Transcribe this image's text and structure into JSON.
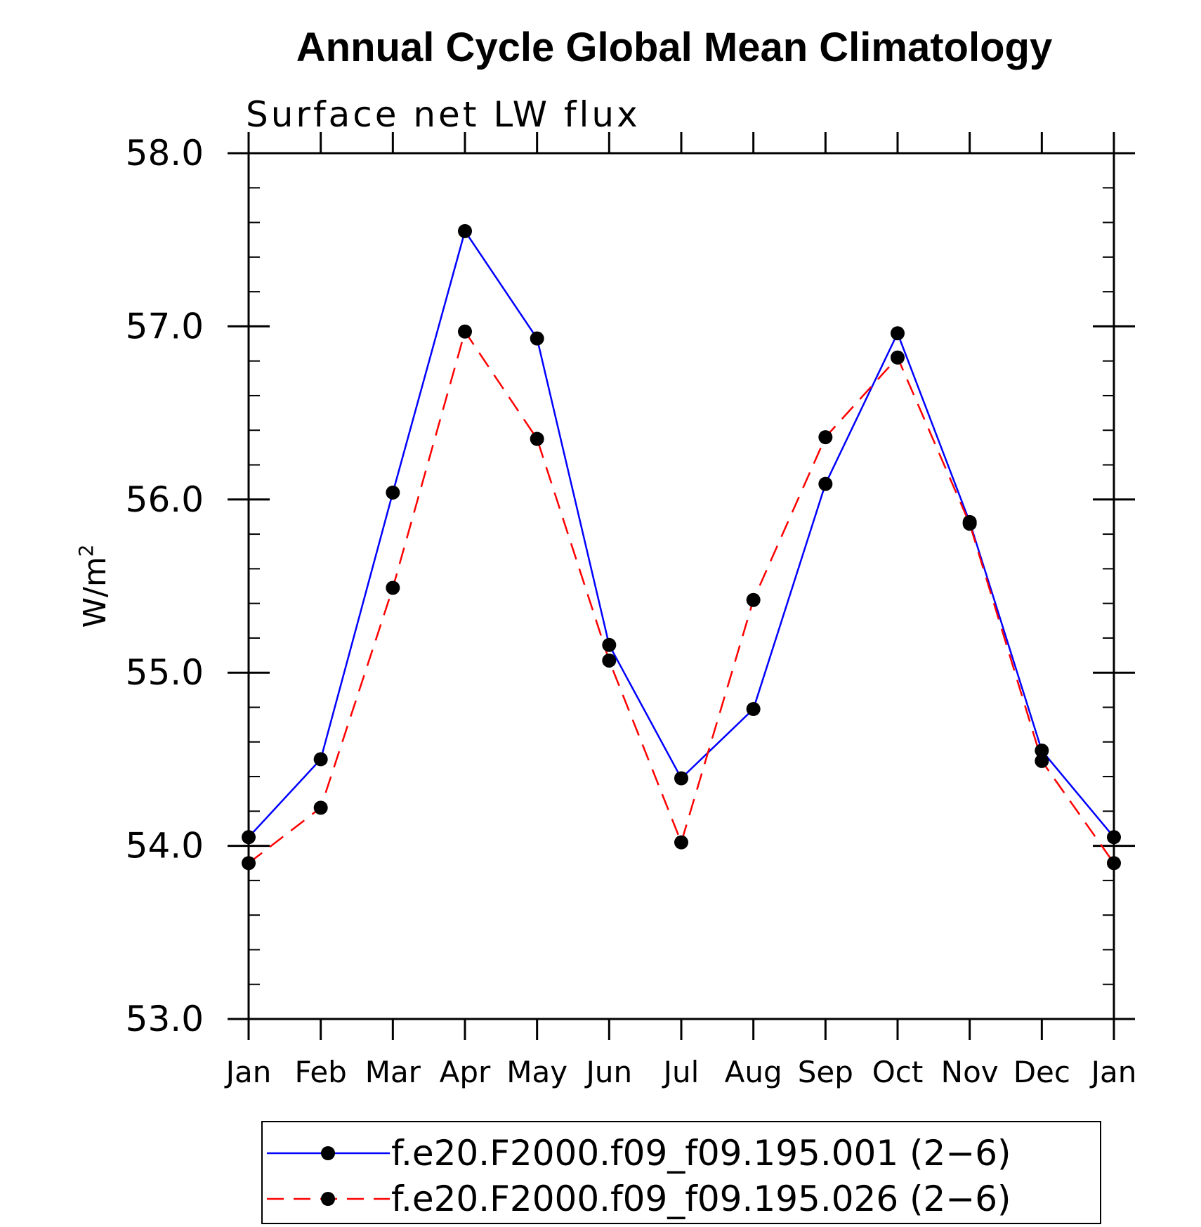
{
  "chart_data": {
    "type": "line",
    "title": "Annual Cycle Global Mean Climatology",
    "subtitle": "Surface net LW flux",
    "ylabel": "W/m",
    "ylabel_superscript": "2",
    "xlabel": "",
    "ylim": [
      53.0,
      58.0
    ],
    "y_ticks": [
      "53.0",
      "54.0",
      "55.0",
      "56.0",
      "57.0",
      "58.0"
    ],
    "categories": [
      "Jan",
      "Feb",
      "Mar",
      "Apr",
      "May",
      "Jun",
      "Jul",
      "Aug",
      "Sep",
      "Oct",
      "Nov",
      "Dec",
      "Jan"
    ],
    "grid": false,
    "legend_position": "bottom",
    "series": [
      {
        "name": "f.e20.F2000.f09_f09.195.001 (2−6)",
        "color": "#0000ff",
        "line_style": "solid",
        "marker": "filled-circle",
        "values": [
          54.05,
          54.5,
          56.04,
          57.55,
          56.93,
          55.16,
          54.39,
          54.79,
          56.09,
          56.96,
          55.87,
          54.55,
          54.05
        ]
      },
      {
        "name": "f.e20.F2000.f09_f09.195.026 (2−6)",
        "color": "#ff0000",
        "line_style": "dashed",
        "marker": "filled-circle",
        "values": [
          53.9,
          54.22,
          55.49,
          56.97,
          56.35,
          55.07,
          54.02,
          55.42,
          56.36,
          56.82,
          55.86,
          54.49,
          53.9
        ]
      }
    ]
  }
}
